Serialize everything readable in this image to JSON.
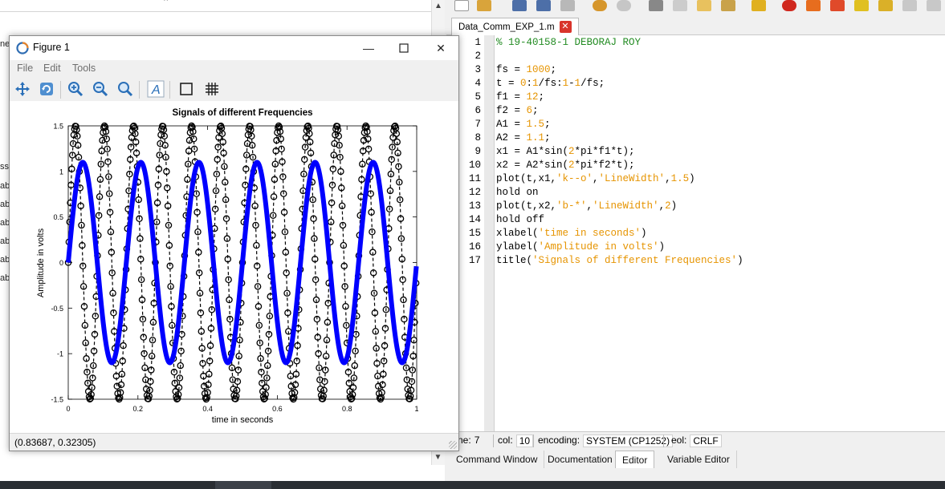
{
  "background_left": {
    "fragments": [
      "ne",
      "ss",
      "abl",
      "abl",
      "abl",
      "abl",
      "abl",
      "abl"
    ]
  },
  "editor": {
    "file_tab": "Data_Comm_EXP_1.m",
    "line_numbers": [
      "1",
      "2",
      "3",
      "4",
      "5",
      "6",
      "7",
      "8",
      "9",
      "10",
      "11",
      "12",
      "13",
      "14",
      "15",
      "16",
      "17"
    ],
    "code": [
      [
        {
          "t": "% 19-40158-1 DEBORAJ ROY",
          "c": "com"
        }
      ],
      [],
      [
        {
          "t": "fs = "
        },
        {
          "t": "1000",
          "c": "num"
        },
        {
          "t": ";"
        }
      ],
      [
        {
          "t": "t = "
        },
        {
          "t": "0",
          "c": "num"
        },
        {
          "t": ":"
        },
        {
          "t": "1",
          "c": "num"
        },
        {
          "t": "/fs:"
        },
        {
          "t": "1",
          "c": "num"
        },
        {
          "t": "-"
        },
        {
          "t": "1",
          "c": "num"
        },
        {
          "t": "/fs;"
        }
      ],
      [
        {
          "t": "f1 = "
        },
        {
          "t": "12",
          "c": "num"
        },
        {
          "t": ";"
        }
      ],
      [
        {
          "t": "f2 = "
        },
        {
          "t": "6",
          "c": "num"
        },
        {
          "t": ";"
        }
      ],
      [
        {
          "t": "A1 = "
        },
        {
          "t": "1.5",
          "c": "num"
        },
        {
          "t": ";"
        }
      ],
      [
        {
          "t": "A2 = "
        },
        {
          "t": "1.1",
          "c": "num"
        },
        {
          "t": ";"
        }
      ],
      [
        {
          "t": "x1 = A1*sin("
        },
        {
          "t": "2",
          "c": "num"
        },
        {
          "t": "*pi*f1*t);"
        }
      ],
      [
        {
          "t": "x2 = A2*sin("
        },
        {
          "t": "2",
          "c": "num"
        },
        {
          "t": "*pi*f2*t);"
        }
      ],
      [
        {
          "t": "plot(t,x1,"
        },
        {
          "t": "'k--o'",
          "c": "str"
        },
        {
          "t": ","
        },
        {
          "t": "'LineWidth'",
          "c": "str"
        },
        {
          "t": ","
        },
        {
          "t": "1.5",
          "c": "num"
        },
        {
          "t": ")"
        }
      ],
      [
        {
          "t": "hold on"
        }
      ],
      [
        {
          "t": "plot(t,x2,"
        },
        {
          "t": "'b-*'",
          "c": "str"
        },
        {
          "t": ","
        },
        {
          "t": "'LineWidth'",
          "c": "str"
        },
        {
          "t": ","
        },
        {
          "t": "2",
          "c": "num"
        },
        {
          "t": ")"
        }
      ],
      [
        {
          "t": "hold off"
        }
      ],
      [
        {
          "t": "xlabel("
        },
        {
          "t": "'time in seconds'",
          "c": "str"
        },
        {
          "t": ")"
        }
      ],
      [
        {
          "t": "ylabel("
        },
        {
          "t": "'Amplitude in volts'",
          "c": "str"
        },
        {
          "t": ")"
        }
      ],
      [
        {
          "t": "title("
        },
        {
          "t": "'Signals of different Frequencies'",
          "c": "str"
        },
        {
          "t": ")"
        }
      ]
    ],
    "colors": {
      "comment": "#228b22",
      "number": "#e69400",
      "string": "#e69400",
      "close": "#d9342b"
    }
  },
  "status": {
    "line_label": "ne:",
    "line_value": "7",
    "col_label": "col:",
    "col_value": "10",
    "encoding_label": "encoding:",
    "encoding_value": "SYSTEM (CP1252)",
    "eol_label": "eol:",
    "eol_value": "CRLF"
  },
  "bottom_tabs": [
    "Command Window",
    "Documentation",
    "Editor",
    "Variable Editor"
  ],
  "bottom_tabs_active": "Editor",
  "figure": {
    "title": "Figure 1",
    "menu": [
      "File",
      "Edit",
      "Tools"
    ],
    "tools": [
      "pan-icon",
      "rotate-icon",
      "zoom-in-icon",
      "zoom-out-icon",
      "zoom-fit-icon",
      "text-icon",
      "box-icon",
      "grid-icon"
    ],
    "status_text": "(0.83687, 0.32305)"
  },
  "chart_data": {
    "type": "line",
    "title": "Signals of different Frequencies",
    "xlabel": "time in seconds",
    "ylabel": "Amplitude in volts",
    "xlim": [
      0,
      1
    ],
    "ylim": [
      -1.5,
      1.5
    ],
    "xticks": [
      "0",
      "0.2",
      "0.4",
      "0.6",
      "0.8",
      "1"
    ],
    "yticks": [
      "-1.5",
      "-1",
      "-0.5",
      "0",
      "0.5",
      "1",
      "1.5"
    ],
    "grid": false,
    "series": [
      {
        "amplitude": 1.5,
        "frequency": 12,
        "color": "#000000",
        "marker": "o",
        "style": "k--o"
      },
      {
        "amplitude": 1.1,
        "frequency": 6,
        "color": "#0000ff",
        "marker": "*",
        "style": "b-*"
      }
    ]
  }
}
